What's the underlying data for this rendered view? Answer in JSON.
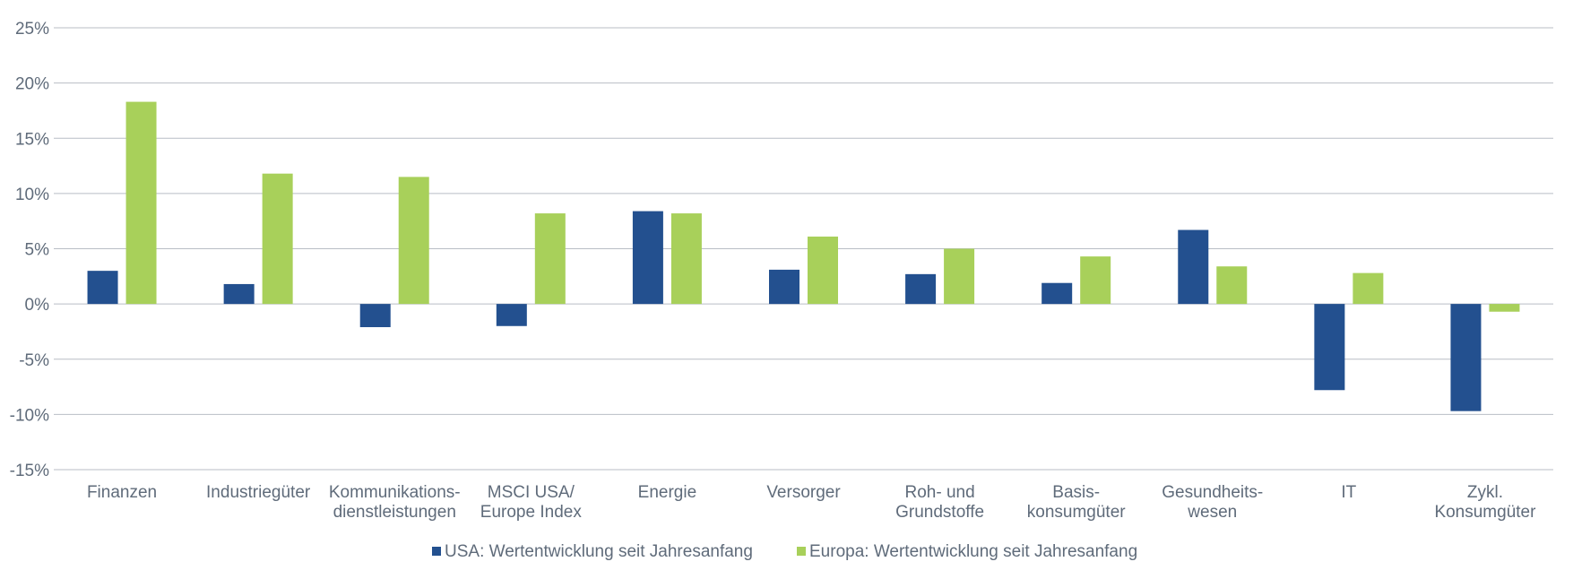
{
  "chart_data": {
    "type": "bar",
    "categories": [
      [
        "Finanzen"
      ],
      [
        "Industriegüter"
      ],
      [
        "Kommunikations-",
        "dienstleistungen"
      ],
      [
        "MSCI USA/",
        "Europe Index"
      ],
      [
        "Energie"
      ],
      [
        "Versorger"
      ],
      [
        "Roh- und",
        "Grundstoffe"
      ],
      [
        "Basis-",
        "konsumgüter"
      ],
      [
        "Gesundheits-",
        "wesen"
      ],
      [
        "IT"
      ],
      [
        "Zykl.",
        "Konsumgüter"
      ]
    ],
    "series": [
      {
        "name": "USA: Wertentwicklung seit Jahresanfang",
        "color": "#23508f",
        "values": [
          3.0,
          1.8,
          -2.1,
          -2.0,
          8.4,
          3.1,
          2.7,
          1.9,
          6.7,
          -7.8,
          -9.7
        ]
      },
      {
        "name": "Europa: Wertentwicklung seit Jahresanfang",
        "color": "#a8d05a",
        "values": [
          18.3,
          11.8,
          11.5,
          8.2,
          8.2,
          6.1,
          5.0,
          4.3,
          3.4,
          2.8,
          -0.7
        ]
      }
    ],
    "yticks": [
      "25%",
      "20%",
      "15%",
      "10%",
      "5%",
      "0%",
      "-5%",
      "-10%",
      "-15%"
    ],
    "ylim": [
      -15,
      25
    ],
    "grid": true,
    "legend_position": "bottom"
  }
}
